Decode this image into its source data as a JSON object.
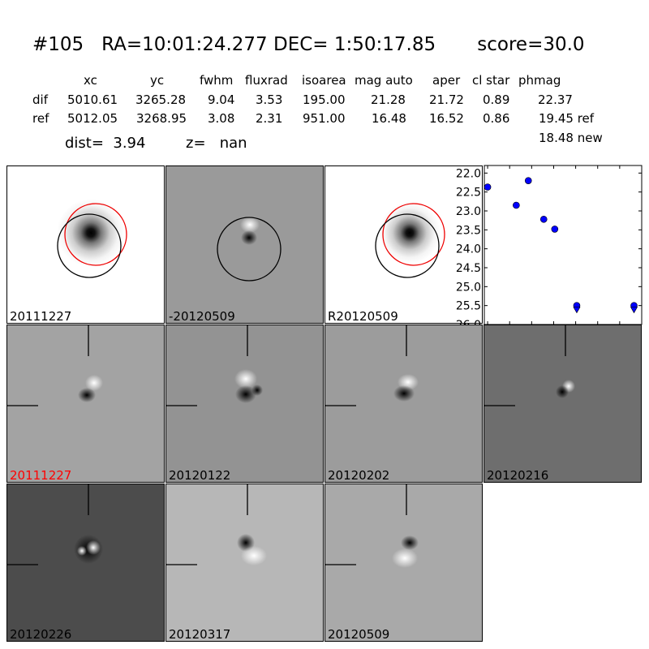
{
  "header": {
    "title": "#105   RA=10:01:24.277 DEC= 1:50:17.85       score=30.0",
    "columns": [
      "xc",
      "yc",
      "fwhm",
      "fluxrad",
      "isoarea",
      "mag auto",
      "aper",
      "cl star",
      "phmag"
    ],
    "rows": [
      {
        "label": "dif",
        "values": [
          "5010.61",
          "3265.28",
          "9.04",
          "3.53",
          "195.00",
          "21.28",
          "21.72",
          "0.89",
          "22.37"
        ]
      },
      {
        "label": "ref",
        "values": [
          "5012.05",
          "3268.95",
          "3.08",
          "2.31",
          "951.00",
          "16.48",
          "16.52",
          "0.86",
          "19.45 ref"
        ]
      }
    ],
    "new_mag": "18.48 new",
    "dist": "dist=  3.94",
    "z": "z=   nan"
  },
  "panels": [
    {
      "label": "20111227",
      "label_color": "#000000",
      "kind": "ref"
    },
    {
      "label": "-20120509",
      "label_color": "#000000",
      "kind": "diff-circle"
    },
    {
      "label": "R20120509",
      "label_color": "#000000",
      "kind": "ref"
    },
    {
      "label": "20111227",
      "label_color": "#ff0000",
      "kind": "diff"
    },
    {
      "label": "20120122",
      "label_color": "#000000",
      "kind": "diff"
    },
    {
      "label": "20120202",
      "label_color": "#000000",
      "kind": "diff"
    },
    {
      "label": "20120216",
      "label_color": "#000000",
      "kind": "diff"
    },
    {
      "label": "20120226",
      "label_color": "#000000",
      "kind": "diff"
    },
    {
      "label": "20120317",
      "label_color": "#000000",
      "kind": "diff"
    },
    {
      "label": "20120509",
      "label_color": "#000000",
      "kind": "diff"
    }
  ],
  "chart_data": {
    "type": "scatter",
    "title": "",
    "xlabel": "",
    "ylabel": "",
    "xlim": [
      -3,
      140
    ],
    "ylim": [
      26.0,
      21.8
    ],
    "y_inverted": true,
    "xticks": [
      "0",
      "20",
      "40",
      "60",
      "80",
      "100",
      "120"
    ],
    "yticks": [
      "22.0",
      "22.5",
      "23.0",
      "23.5",
      "24.0",
      "24.5",
      "25.0",
      "25.5",
      "26.0"
    ],
    "marker_color": "#0000ff",
    "detections": {
      "x": [
        0,
        26,
        37,
        51,
        61
      ],
      "y": [
        22.37,
        22.85,
        22.2,
        23.22,
        23.48
      ]
    },
    "upper_limits": {
      "x": [
        81,
        133
      ],
      "y": [
        25.5,
        25.5
      ]
    }
  }
}
